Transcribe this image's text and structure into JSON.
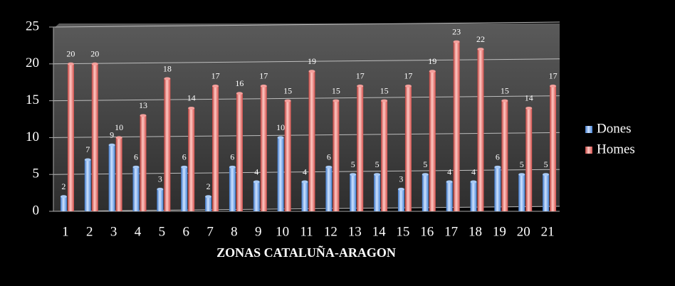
{
  "chart_data": {
    "type": "bar",
    "x_label": "ZONAS CATALUÑA-ARAGON",
    "categories": [
      "1",
      "2",
      "3",
      "4",
      "5",
      "6",
      "7",
      "8",
      "9",
      "10",
      "11",
      "12",
      "13",
      "14",
      "15",
      "16",
      "17",
      "18",
      "19",
      "20",
      "21"
    ],
    "series": [
      {
        "name": "Dones",
        "color": "#6fa8e8",
        "values": [
          2,
          7,
          9,
          6,
          3,
          6,
          2,
          6,
          4,
          10,
          4,
          6,
          5,
          5,
          3,
          5,
          4,
          4,
          6,
          5,
          5
        ]
      },
      {
        "name": "Homes",
        "color": "#e8706c",
        "values": [
          20,
          20,
          10,
          13,
          18,
          14,
          17,
          16,
          17,
          15,
          19,
          15,
          17,
          15,
          17,
          19,
          23,
          22,
          15,
          14,
          17
        ]
      }
    ],
    "ylim": [
      0,
      25
    ],
    "yticks": [
      0,
      5,
      10,
      15,
      20,
      25
    ],
    "grid": true,
    "legend": "right"
  }
}
